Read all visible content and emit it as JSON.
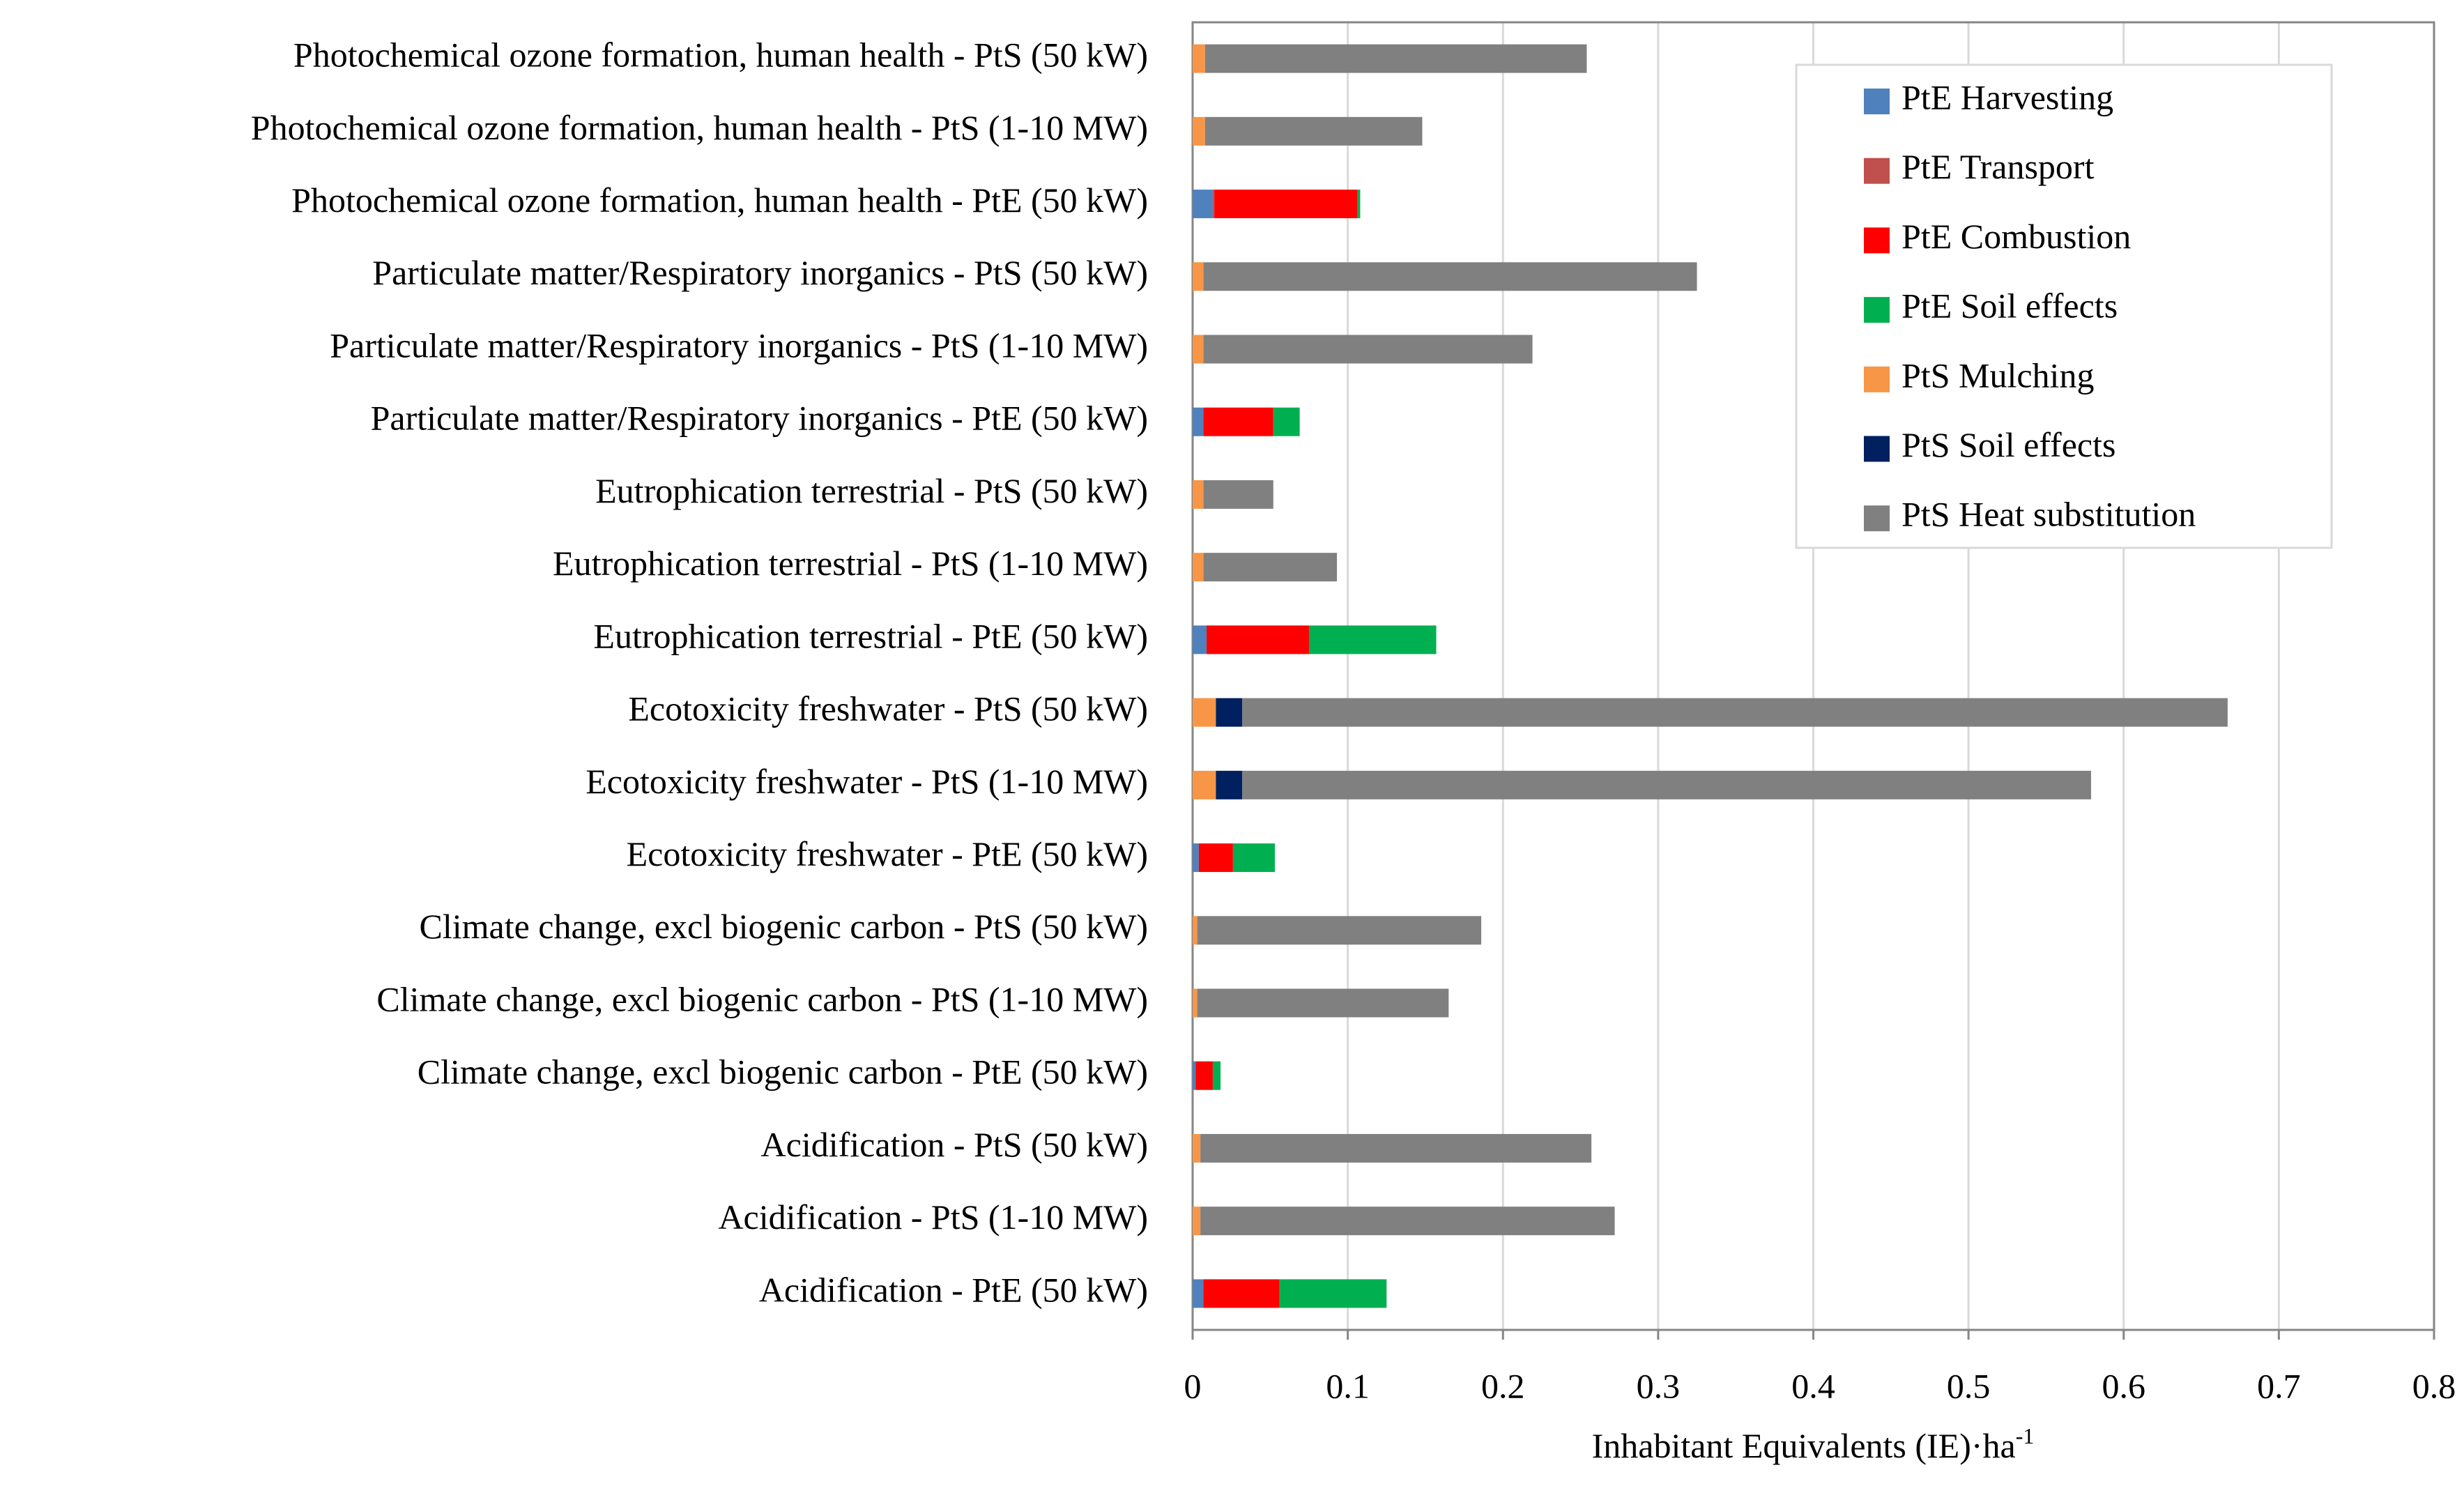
{
  "chart_data": {
    "type": "stacked-barh",
    "x_label": "Inhabitant Equivalents (IE)·ha",
    "x_label_sup": "-1",
    "categories": [
      "Photochemical ozone formation, human health - PtS (50 kW)",
      "Photochemical ozone formation, human health - PtS (1-10 MW)",
      "Photochemical ozone formation, human health - PtE (50 kW)",
      "Particulate matter/Respiratory inorganics - PtS (50 kW)",
      "Particulate matter/Respiratory inorganics - PtS (1-10 MW)",
      "Particulate matter/Respiratory inorganics - PtE (50 kW)",
      "Eutrophication terrestrial - PtS (50 kW)",
      "Eutrophication terrestrial - PtS (1-10 MW)",
      "Eutrophication terrestrial - PtE (50 kW)",
      "Ecotoxicity freshwater - PtS (50 kW)",
      "Ecotoxicity freshwater - PtS (1-10 MW)",
      "Ecotoxicity freshwater - PtE (50 kW)",
      "Climate change, excl biogenic carbon - PtS (50 kW)",
      "Climate change, excl biogenic carbon - PtS (1-10 MW)",
      "Climate change, excl biogenic carbon - PtE (50 kW)",
      "Acidification - PtS (50 kW)",
      "Acidification - PtS (1-10 MW)",
      "Acidification - PtE (50 kW)"
    ],
    "series": [
      {
        "name": "PtE Harvesting",
        "color": "#4f81bd",
        "values": [
          0,
          0,
          0.013,
          0,
          0,
          0.007,
          0,
          0,
          0.009,
          0,
          0,
          0.004,
          0,
          0,
          0.002,
          0,
          0,
          0.007
        ]
      },
      {
        "name": "PtE Transport",
        "color": "#c0504d",
        "values": [
          0,
          0,
          0.001,
          0,
          0,
          0,
          0,
          0,
          0,
          0,
          0,
          0,
          0,
          0,
          0,
          0,
          0,
          0
        ]
      },
      {
        "name": "PtE Combustion",
        "color": "#ff0000",
        "values": [
          0,
          0,
          0.092,
          0,
          0,
          0.045,
          0,
          0,
          0.066,
          0,
          0,
          0.022,
          0,
          0,
          0.011,
          0,
          0,
          0.049
        ]
      },
      {
        "name": "PtE Soil effects",
        "color": "#00b050",
        "values": [
          0,
          0,
          0.002,
          0,
          0,
          0.017,
          0,
          0,
          0.082,
          0,
          0,
          0.027,
          0,
          0,
          0.005,
          0,
          0,
          0.069
        ]
      },
      {
        "name": "PtS Mulching",
        "color": "#f79646",
        "values": [
          0.008,
          0.008,
          0,
          0.007,
          0.007,
          0,
          0.007,
          0.007,
          0,
          0.015,
          0.015,
          0,
          0.003,
          0.003,
          0,
          0.005,
          0.005,
          0
        ]
      },
      {
        "name": "PtS Soil effects",
        "color": "#002060",
        "values": [
          0,
          0,
          0,
          0,
          0,
          0,
          0,
          0,
          0,
          0.017,
          0.017,
          0,
          0,
          0,
          0,
          0,
          0,
          0
        ]
      },
      {
        "name": "PtS Heat substitution",
        "color": "#808080",
        "values": [
          0.246,
          0.14,
          0,
          0.318,
          0.212,
          0,
          0.045,
          0.086,
          0,
          0.635,
          0.547,
          0,
          0.183,
          0.162,
          0,
          0.252,
          0.267,
          0
        ]
      }
    ],
    "xlim": [
      0,
      0.8
    ],
    "xticks": [
      0,
      0.1,
      0.2,
      0.3,
      0.4,
      0.5,
      0.6,
      0.7,
      0.8
    ],
    "grid": true,
    "legend": "upper right"
  }
}
